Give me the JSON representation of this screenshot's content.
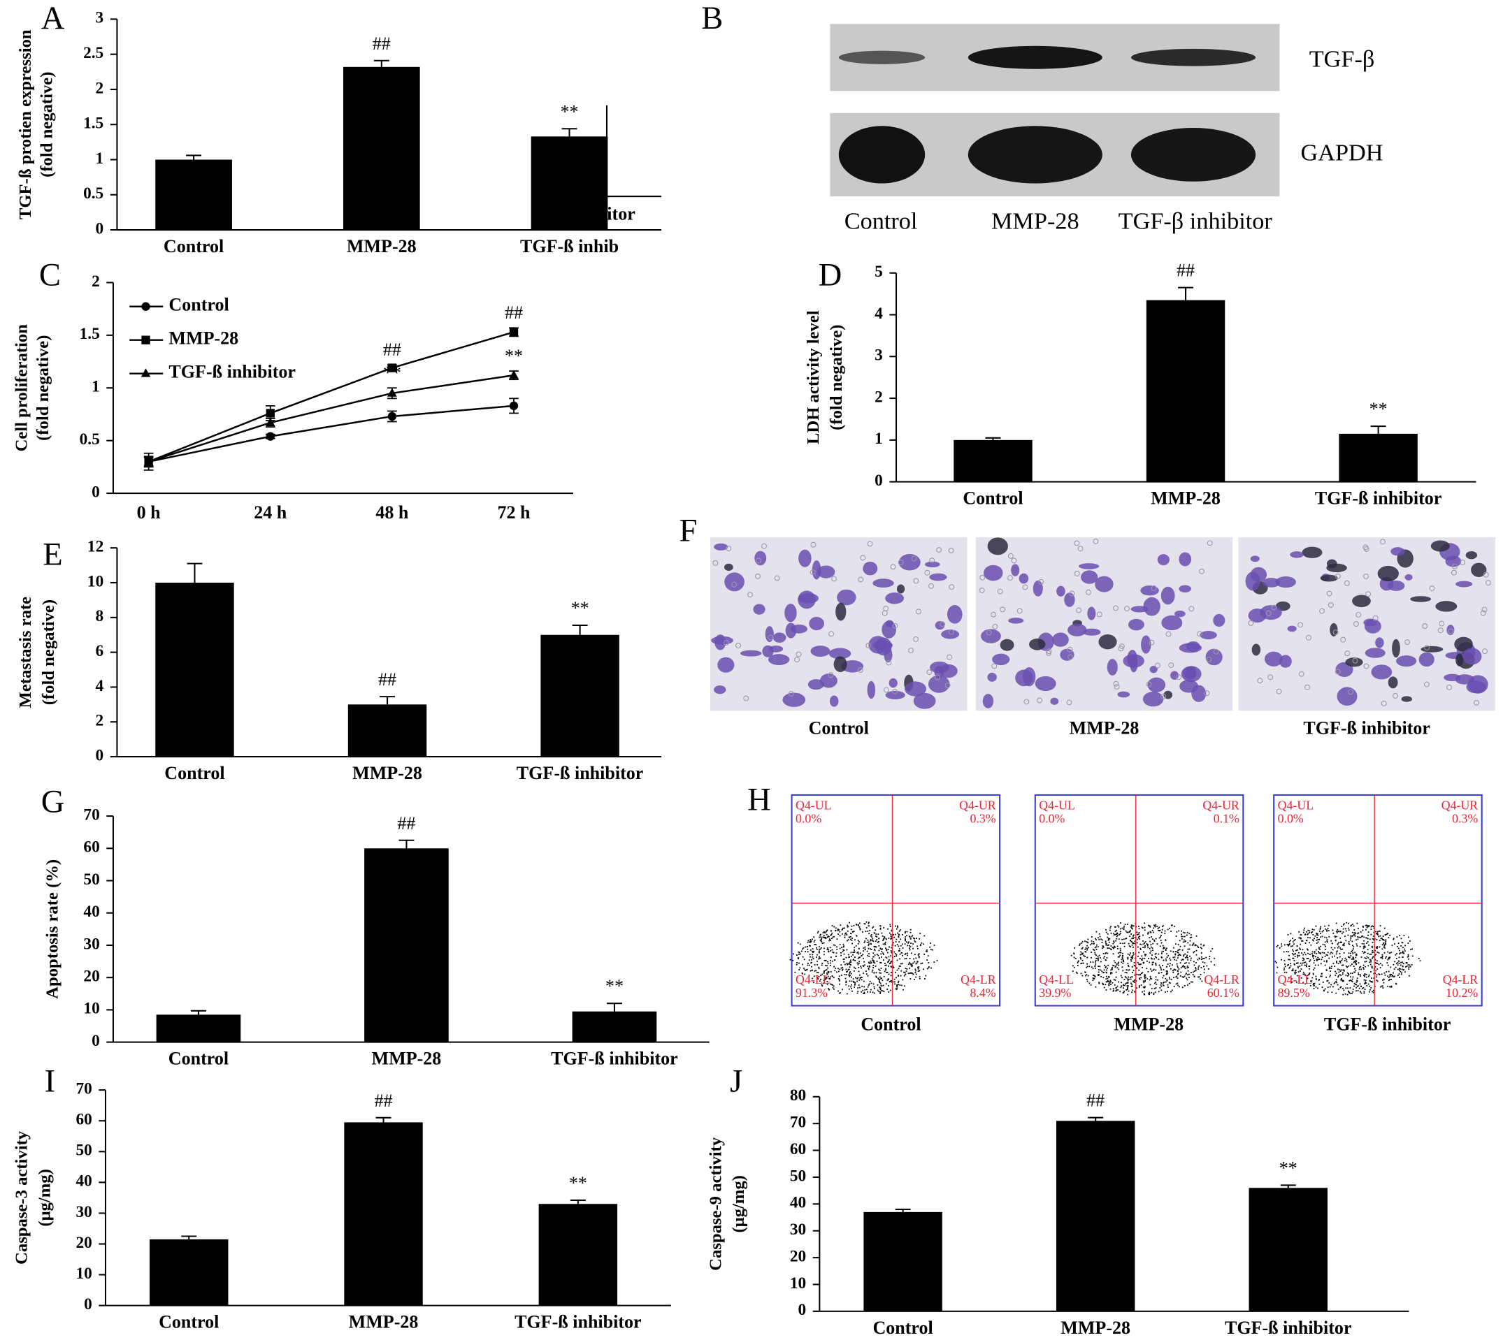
{
  "chart_data": [
    {
      "panel": "A",
      "type": "bar",
      "y_label": [
        "TGF-ß protien expression",
        "(fold negative)"
      ],
      "categories": [
        "Control",
        "MMP-28",
        "TGF-ß inhib"
      ],
      "values": [
        1.0,
        2.32,
        1.33
      ],
      "errors": [
        0.06,
        0.09,
        0.11
      ],
      "annotations": [
        null,
        "##",
        "**"
      ],
      "overlay_text": "itor",
      "color": "#000000",
      "ylim": [
        0,
        3
      ],
      "yticks": [
        0,
        0.5,
        1,
        1.5,
        2,
        2.5,
        3
      ]
    },
    {
      "panel": "C",
      "type": "line",
      "y_label": [
        "Cell proliferation",
        "(fold negative)"
      ],
      "categories": [
        "0 h",
        "24 h",
        "48 h",
        "72 h"
      ],
      "ylim": [
        0,
        2
      ],
      "yticks": [
        0,
        0.5,
        1,
        1.5,
        2
      ],
      "series": [
        {
          "name": "Control",
          "color": "#000000",
          "marker": "circle",
          "values": [
            0.3,
            0.54,
            0.73,
            0.83
          ],
          "errors": [
            0.08,
            0.02,
            0.05,
            0.07
          ],
          "annotations": [
            null,
            null,
            null,
            null
          ]
        },
        {
          "name": "MMP-28",
          "color": "#000000",
          "marker": "square",
          "values": [
            0.3,
            0.76,
            1.19,
            1.53
          ],
          "errors": [
            0.05,
            0.07,
            0.03,
            0.04
          ],
          "annotations": [
            null,
            null,
            "##",
            "##"
          ]
        },
        {
          "name": "TGF-ß inhibitor",
          "color": "#000000",
          "marker": "triangle",
          "values": [
            0.3,
            0.67,
            0.95,
            1.12
          ],
          "errors": [
            0.04,
            0.04,
            0.05,
            0.04
          ],
          "annotations": [
            null,
            null,
            "**",
            "**"
          ]
        }
      ]
    },
    {
      "panel": "D",
      "type": "bar",
      "y_label": [
        "LDH activity level",
        "(fold negative)"
      ],
      "categories": [
        "Control",
        "MMP-28",
        "TGF-ß inhibitor"
      ],
      "values": [
        1.0,
        4.35,
        1.15
      ],
      "errors": [
        0.05,
        0.3,
        0.18
      ],
      "annotations": [
        null,
        "##",
        "**"
      ],
      "color": "#000000",
      "ylim": [
        0,
        5
      ],
      "yticks": [
        0,
        1,
        2,
        3,
        4,
        5
      ]
    },
    {
      "panel": "E",
      "type": "bar",
      "y_label": [
        "Metastasis rate",
        "(fold negative)"
      ],
      "categories": [
        "Control",
        "MMP-28",
        "TGF-ß inhibitor"
      ],
      "values": [
        10,
        3,
        7
      ],
      "errors": [
        1.1,
        0.45,
        0.55
      ],
      "annotations": [
        null,
        "##",
        "**"
      ],
      "color": "#000000",
      "ylim": [
        0,
        12
      ],
      "yticks": [
        0,
        2,
        4,
        6,
        8,
        10,
        12
      ]
    },
    {
      "panel": "G",
      "type": "bar",
      "y_label": [
        "Apoptosis rate (%)"
      ],
      "categories": [
        "Control",
        "MMP-28",
        "TGF-ß inhibitor"
      ],
      "values": [
        8.5,
        60,
        9.5
      ],
      "errors": [
        1.2,
        2.5,
        2.5
      ],
      "annotations": [
        null,
        "##",
        "**"
      ],
      "color": "#000000",
      "ylim": [
        0,
        70
      ],
      "yticks": [
        0,
        10,
        20,
        30,
        40,
        50,
        60,
        70
      ]
    },
    {
      "panel": "I",
      "type": "bar",
      "y_label": [
        "Caspase-3 activity",
        "(μg/mg)"
      ],
      "categories": [
        "Control",
        "MMP-28",
        "TGF-ß inhibitor"
      ],
      "values": [
        21.5,
        59.5,
        33
      ],
      "errors": [
        1,
        1.5,
        1.2
      ],
      "annotations": [
        null,
        "##",
        "**"
      ],
      "color": "#000000",
      "ylim": [
        0,
        70
      ],
      "yticks": [
        0,
        10,
        20,
        30,
        40,
        50,
        60,
        70
      ]
    },
    {
      "panel": "J",
      "type": "bar",
      "y_label": [
        "Caspase-9 activity",
        "(μg/mg)"
      ],
      "categories": [
        "Control",
        "MMP-28",
        "TGF-ß inhibitor"
      ],
      "values": [
        37,
        71,
        46
      ],
      "errors": [
        1,
        1.2,
        1
      ],
      "annotations": [
        null,
        "##",
        "**"
      ],
      "color": "#000000",
      "ylim": [
        0,
        80
      ],
      "yticks": [
        0,
        10,
        20,
        30,
        40,
        50,
        60,
        70,
        80
      ]
    }
  ],
  "blot": {
    "panel": "B",
    "rows": [
      "TGF-β",
      "GAPDH"
    ],
    "lanes": [
      "Control",
      "MMP-28",
      "TGF-β inhibitor"
    ]
  },
  "micrographs": {
    "panel": "F",
    "labels": [
      "Control",
      "MMP-28",
      "TGF-ß inhibitor"
    ]
  },
  "flow": {
    "panel": "H",
    "plots": [
      {
        "label": "Control",
        "quadrants": [
          [
            "Q4-UL",
            "0.0%"
          ],
          [
            "Q4-UR",
            "0.3%"
          ],
          [
            "Q4-LL",
            "91.3%"
          ],
          [
            "Q4-LR",
            "8.4%"
          ]
        ]
      },
      {
        "label": "MMP-28",
        "quadrants": [
          [
            "Q4-UL",
            "0.0%"
          ],
          [
            "Q4-UR",
            "0.1%"
          ],
          [
            "Q4-LL",
            "39.9%"
          ],
          [
            "Q4-LR",
            "60.1%"
          ]
        ]
      },
      {
        "label": "TGF-ß inhibitor",
        "quadrants": [
          [
            "Q4-UL",
            "0.0%"
          ],
          [
            "Q4-UR",
            "0.3%"
          ],
          [
            "Q4-LL",
            "89.5%"
          ],
          [
            "Q4-LR",
            "10.2%"
          ]
        ]
      }
    ]
  }
}
